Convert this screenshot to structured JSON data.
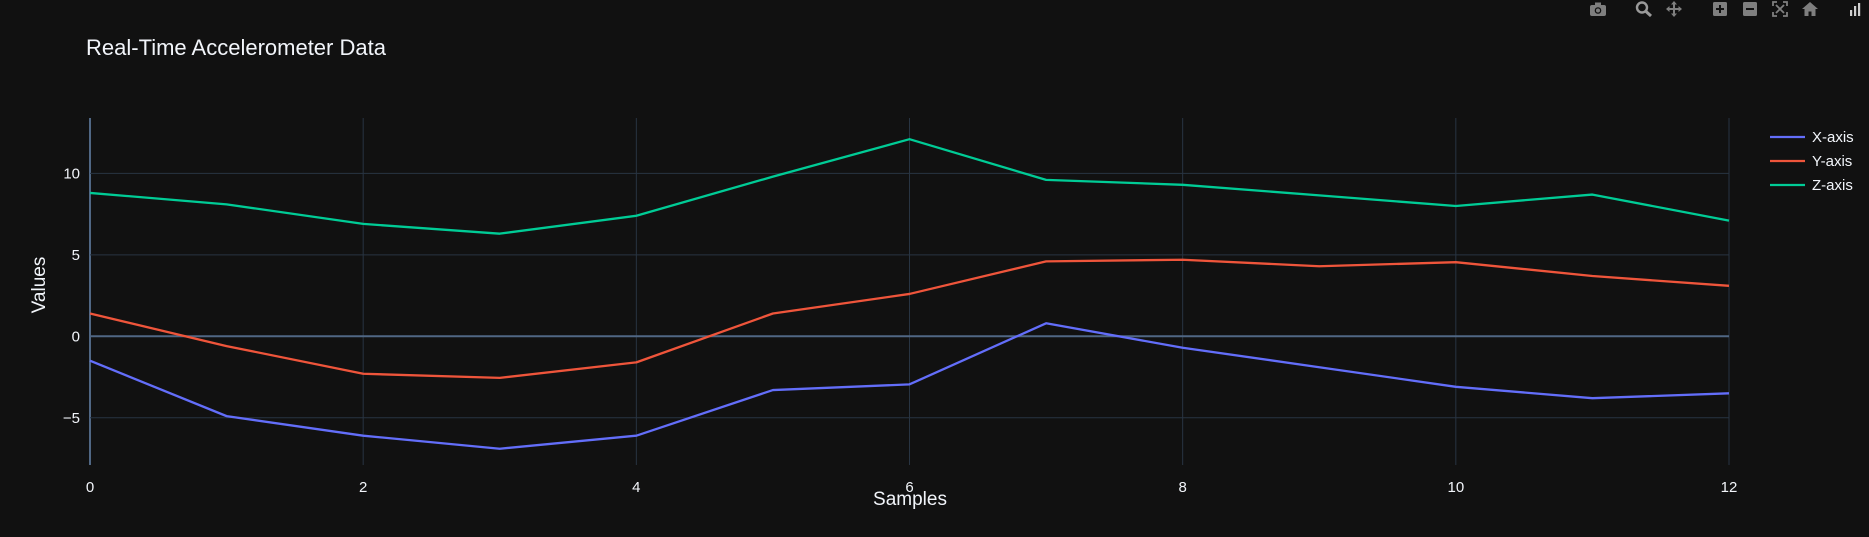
{
  "colors": {
    "background": "#111111",
    "grid": "#283442",
    "zeroline": "#506784",
    "text": "#f2f5fa",
    "x_series": "#636efa",
    "y_series": "#EF553B",
    "z_series": "#00cc96",
    "modebar_icon": "#7f7f7f"
  },
  "modebar": {
    "buttons": [
      {
        "name": "camera-icon",
        "title": "Download plot as a png"
      },
      {
        "name": "zoom-icon",
        "title": "Zoom"
      },
      {
        "name": "pan-icon",
        "title": "Pan"
      },
      {
        "name": "zoom-in-icon",
        "title": "Zoom in"
      },
      {
        "name": "zoom-out-icon",
        "title": "Zoom out"
      },
      {
        "name": "autoscale-icon",
        "title": "Autoscale"
      },
      {
        "name": "home-icon",
        "title": "Reset axes"
      },
      {
        "name": "plotly-logo-icon",
        "title": "Produced with Plotly"
      }
    ]
  },
  "chart_data": {
    "type": "line",
    "title": "Real-Time Accelerometer Data",
    "xlabel": "Samples",
    "ylabel": "Values",
    "x": [
      0,
      1,
      2,
      3,
      4,
      5,
      6,
      7,
      8,
      9,
      10,
      11,
      12
    ],
    "xlim": [
      0,
      12
    ],
    "ylim": [
      -7.9,
      13.4
    ],
    "x_ticks": [
      0,
      2,
      4,
      6,
      8,
      10,
      12
    ],
    "y_ticks": [
      -5,
      0,
      5,
      10
    ],
    "x_tick_labels": [
      "0",
      "2",
      "4",
      "6",
      "8",
      "10",
      "12"
    ],
    "y_tick_labels": [
      "−5",
      "0",
      "5",
      "10"
    ],
    "grid": true,
    "legend_position": "top-right",
    "series": [
      {
        "name": "X-axis",
        "color": "#636efa",
        "values": [
          -1.5,
          -4.9,
          -6.1,
          -6.9,
          -6.1,
          -3.3,
          -2.95,
          0.8,
          -0.7,
          -1.9,
          -3.1,
          -3.8,
          -3.5
        ]
      },
      {
        "name": "Y-axis",
        "color": "#EF553B",
        "values": [
          1.4,
          -0.6,
          -2.3,
          -2.55,
          -1.6,
          1.4,
          2.6,
          4.6,
          4.7,
          4.3,
          4.55,
          3.7,
          3.1
        ]
      },
      {
        "name": "Z-axis",
        "color": "#00cc96",
        "values": [
          8.8,
          8.1,
          6.9,
          6.3,
          7.4,
          9.8,
          12.1,
          9.6,
          9.3,
          8.65,
          8.0,
          8.7,
          7.1
        ]
      }
    ]
  }
}
